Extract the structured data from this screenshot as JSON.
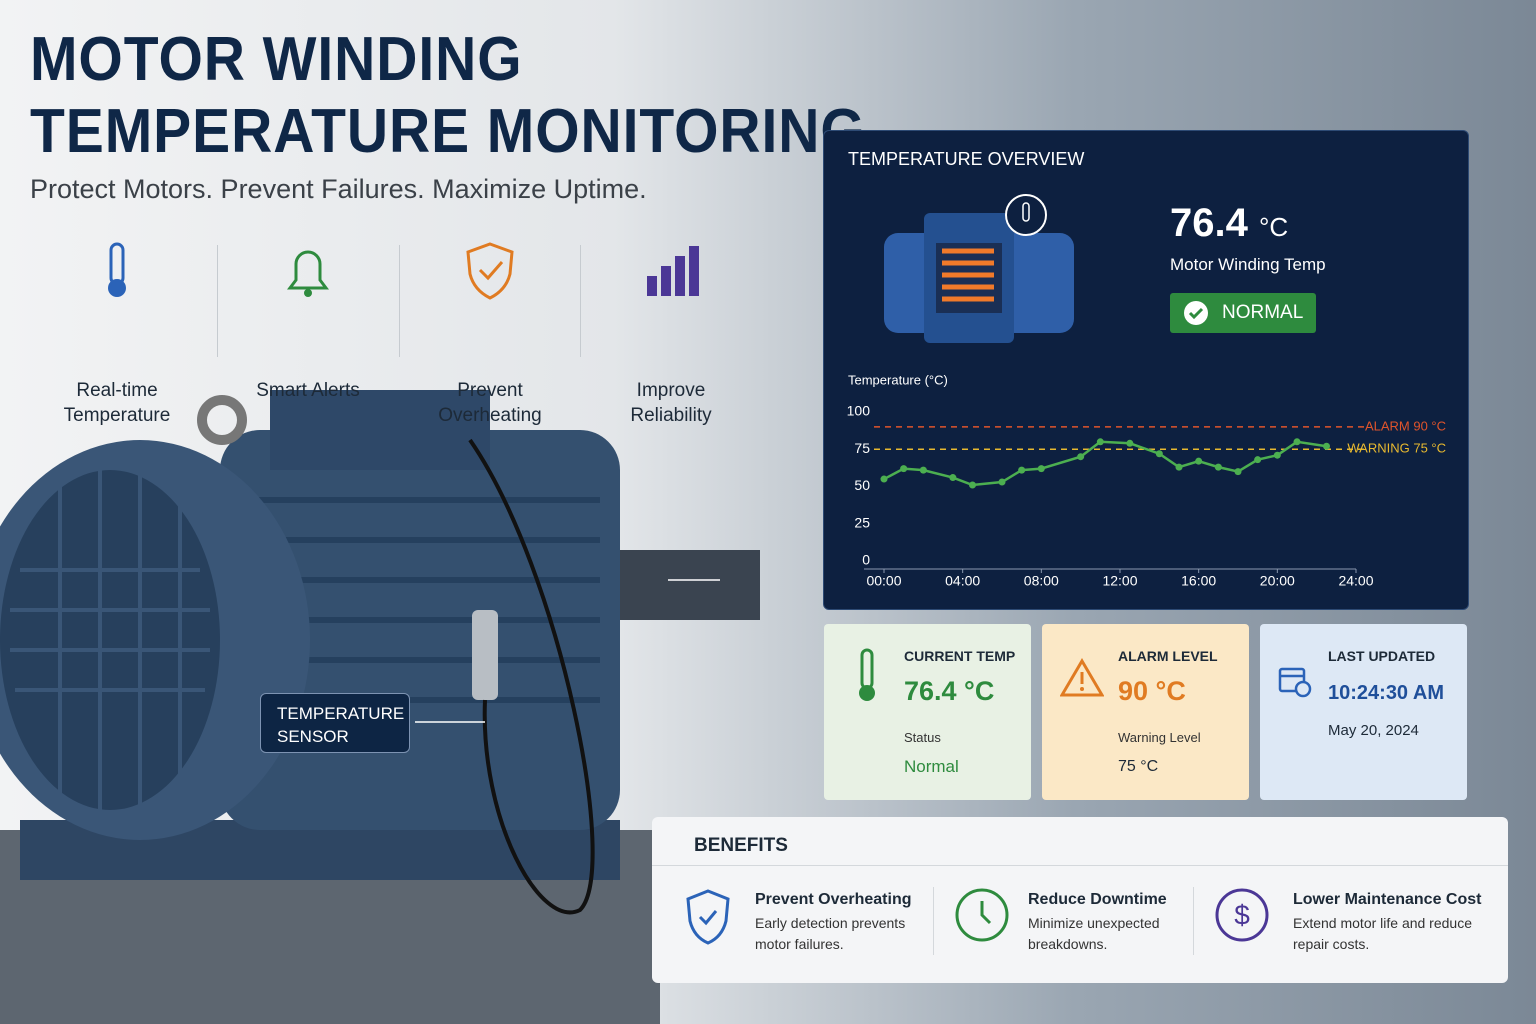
{
  "header": {
    "title": "MOTOR WINDING TEMPERATURE MONITORING",
    "subtitle": "Protect Motors. Prevent Failures. Maximize Uptime."
  },
  "features": [
    {
      "label": "Real-time Temperature"
    },
    {
      "label": "Smart Alerts"
    },
    {
      "label": "Prevent Overheating"
    },
    {
      "label": "Improve Reliability"
    }
  ],
  "callout": {
    "label": "TEMPERATURE SENSOR"
  },
  "overview": {
    "title": "TEMPERATURE OVERVIEW",
    "reading": "76.4",
    "unit": "°C",
    "caption": "Motor Winding Temp",
    "status": "NORMAL"
  },
  "chart_data": {
    "type": "line",
    "y_label": "Temperature (°C)",
    "x": [
      0,
      1,
      2,
      3.5,
      4.5,
      6,
      7,
      8,
      10,
      11,
      12.5,
      14,
      15,
      16,
      17,
      18,
      19,
      20,
      21,
      22.5
    ],
    "series": [
      {
        "name": "Temperature",
        "color": "#4caf50",
        "values": [
          55,
          62,
          61,
          56,
          51,
          53,
          61,
          62,
          70,
          80,
          79,
          72,
          63,
          67,
          63,
          60,
          68,
          71,
          80,
          77
        ]
      }
    ],
    "xlim": [
      0,
      24
    ],
    "xticks": [
      {
        "value": 0,
        "label": "00:00"
      },
      {
        "value": 4,
        "label": "04:00"
      },
      {
        "value": 8,
        "label": "08:00"
      },
      {
        "value": 12,
        "label": "12:00"
      },
      {
        "value": 16,
        "label": "16:00"
      },
      {
        "value": 20,
        "label": "20:00"
      },
      {
        "value": 24,
        "label": "24:00"
      }
    ],
    "ylim": [
      0,
      100
    ],
    "yticks": [
      0,
      25,
      50,
      75,
      100
    ],
    "grid": false,
    "thresholds": [
      {
        "value": 90,
        "label": "ALARM 90 °C",
        "color": "#e0542b"
      },
      {
        "value": 75,
        "label": "WARNING 75 °C",
        "color": "#e8b92f"
      }
    ]
  },
  "cards": [
    {
      "title": "CURRENT TEMP",
      "value": "76.4 °C",
      "sub_label": "Status",
      "sub_value": "Normal"
    },
    {
      "title": "ALARM LEVEL",
      "value": "90 °C",
      "sub_label": "Warning Level",
      "sub_value": "75 °C"
    },
    {
      "title": "LAST UPDATED",
      "value": "10:24:30 AM",
      "sub_value": "May 20, 2024"
    }
  ],
  "benefits": {
    "title": "BENEFITS",
    "items": [
      {
        "title": "Prevent Overheating",
        "text": "Early detection prevents motor failures."
      },
      {
        "title": "Reduce Downtime",
        "text": "Minimize unexpected breakdowns."
      },
      {
        "title": "Lower Maintenance Cost",
        "text": "Extend motor life and reduce repair costs."
      }
    ]
  }
}
